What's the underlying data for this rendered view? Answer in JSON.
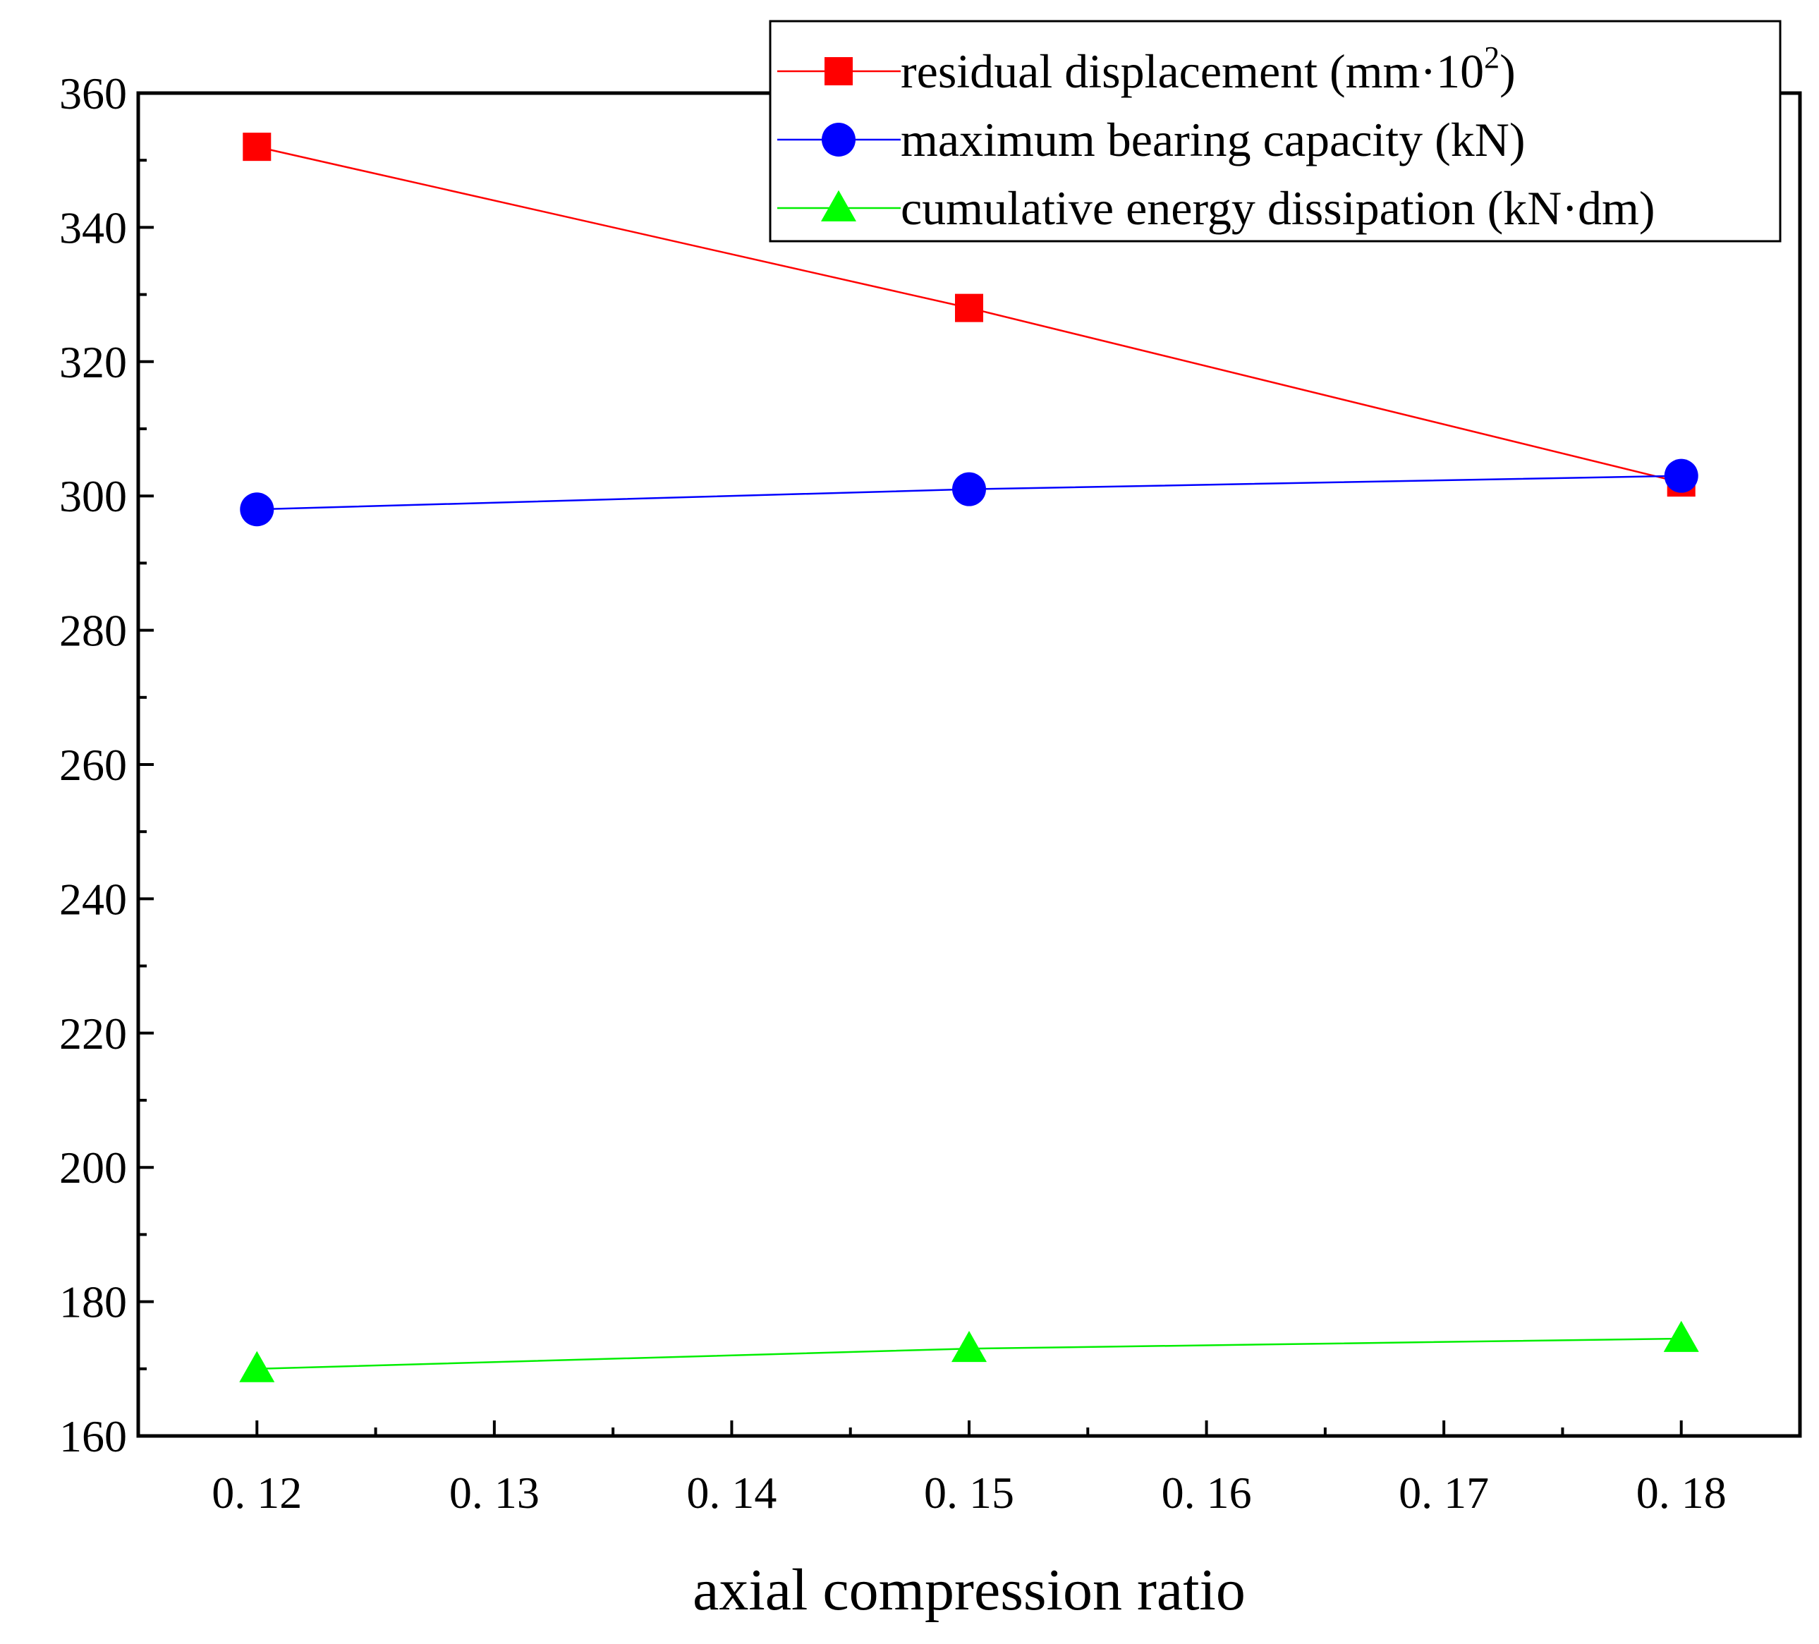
{
  "chart_data": {
    "type": "line",
    "title": "",
    "xlabel": "axial compression ratio",
    "ylabel": "",
    "xlim": [
      0.115,
      0.185
    ],
    "ylim": [
      160,
      360
    ],
    "x_ticks": [
      0.12,
      0.13,
      0.14,
      0.15,
      0.16,
      0.17,
      0.18
    ],
    "x_tick_labels": [
      "0. 12",
      "0. 13",
      "0. 14",
      "0. 15",
      "0. 16",
      "0. 17",
      "0. 18"
    ],
    "y_ticks": [
      160,
      180,
      200,
      220,
      240,
      260,
      280,
      300,
      320,
      340,
      360
    ],
    "y_tick_labels": [
      "160",
      "180",
      "200",
      "220",
      "240",
      "260",
      "280",
      "300",
      "320",
      "340",
      "360"
    ],
    "x": [
      0.12,
      0.15,
      0.18
    ],
    "series": [
      {
        "name": "residual displacement (mm·10",
        "name_sup": "2",
        "name_tail": ")",
        "marker": "square",
        "color": "#ff0000",
        "line_color": "#ff0000",
        "values": [
          352,
          328,
          302
        ]
      },
      {
        "name": "maximum bearing capacity (kN)",
        "marker": "circle",
        "color": "#0000ff",
        "line_color": "#0000ff",
        "values": [
          298,
          301,
          303
        ]
      },
      {
        "name": "cumulative energy dissipation (kN·dm)",
        "marker": "triangle",
        "color": "#00ff00",
        "line_color": "#00ee00",
        "values": [
          170,
          173,
          174.5
        ]
      }
    ],
    "legend_position": "top-right",
    "grid": false
  }
}
